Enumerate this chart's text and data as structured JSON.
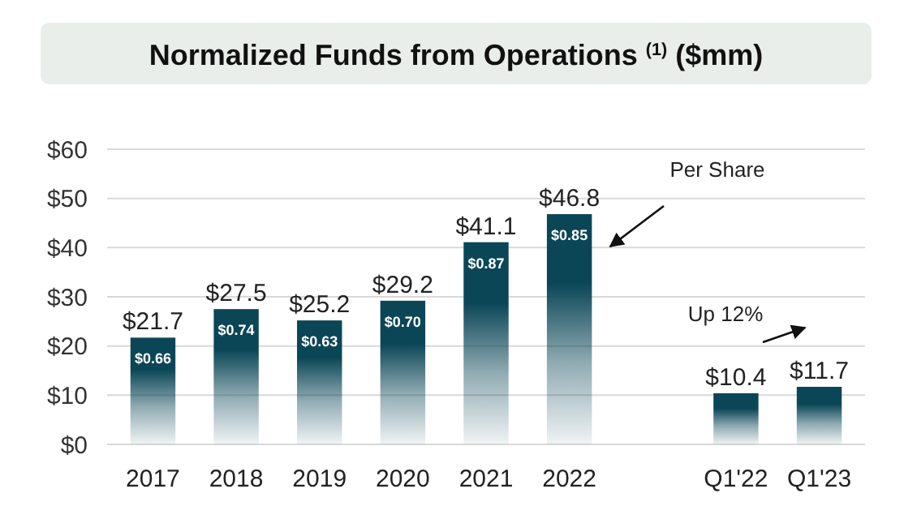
{
  "chart_data": {
    "type": "bar",
    "title": "Normalized Funds from Operations $^{(1)}$ ($mm)",
    "categories": [
      "2017",
      "2018",
      "2019",
      "2020",
      "2021",
      "2022",
      null,
      "Q1'22",
      "Q1'23"
    ],
    "values": [
      21.7,
      27.5,
      25.2,
      29.2,
      41.1,
      46.8,
      null,
      10.4,
      11.7
    ],
    "value_labels": [
      "$21.7",
      "$27.5",
      "$25.2",
      "$29.2",
      "$41.1",
      "$46.8",
      null,
      "$10.4",
      "$11.7"
    ],
    "color": "#0b4657",
    "ylim": [
      0,
      60
    ],
    "yticks": [
      {
        "value": 0,
        "label": "$0"
      },
      {
        "value": 10,
        "label": "$10"
      },
      {
        "value": 20,
        "label": "$20"
      },
      {
        "value": 30,
        "label": "$30"
      },
      {
        "value": 40,
        "label": "$40"
      },
      {
        "value": 50,
        "label": "$50"
      },
      {
        "value": 60,
        "label": "$60"
      }
    ],
    "grid": "y",
    "annotations": [
      {
        "text": "$0.66",
        "x": "2017",
        "y": 21.7
      },
      {
        "text": "$0.74",
        "x": "2018",
        "y": 27.5
      },
      {
        "text": "$0.63",
        "x": "2019",
        "y": 25.2
      },
      {
        "text": "$0.70",
        "x": "2020",
        "y": 29.2
      },
      {
        "text": "$0.87",
        "x": "2021",
        "y": 41.1
      },
      {
        "text": "$0.85",
        "x": "2022",
        "y": 46.8
      },
      "Per Share",
      "Up 12%"
    ]
  }
}
